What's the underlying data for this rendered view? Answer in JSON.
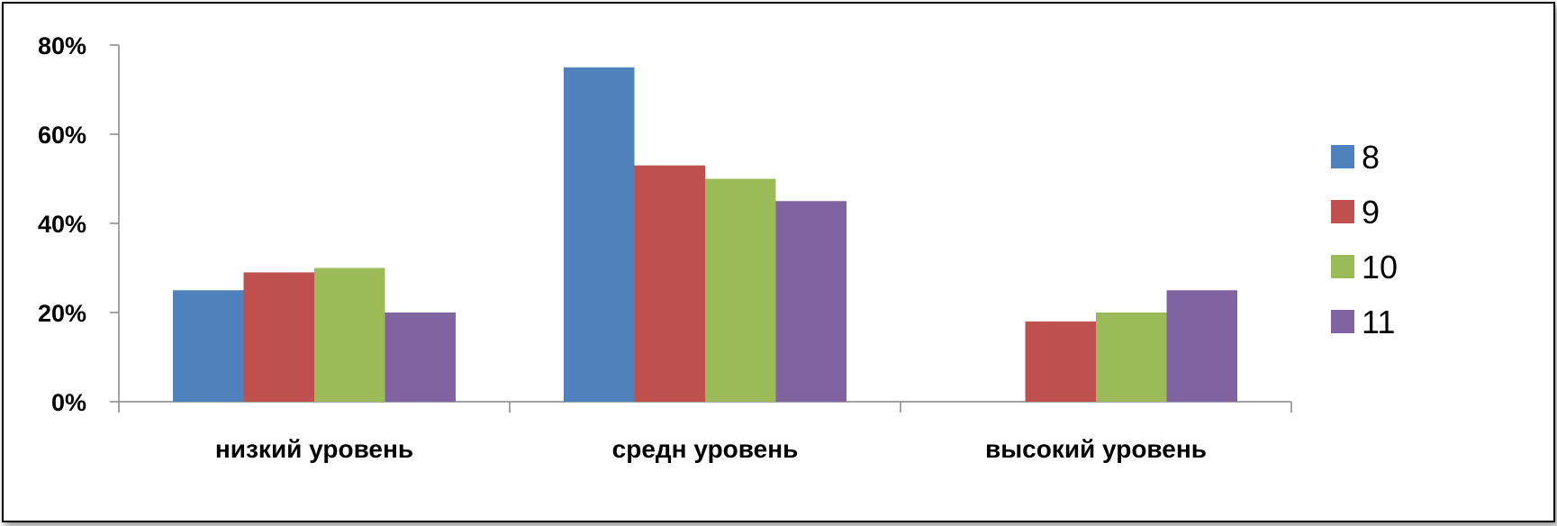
{
  "chart_data": {
    "type": "bar",
    "title": "",
    "xlabel": "",
    "ylabel": "",
    "ylim": [
      0,
      80
    ],
    "yticks": [
      "0%",
      "20%",
      "40%",
      "60%",
      "80%"
    ],
    "ytick_values": [
      0,
      20,
      40,
      60,
      80
    ],
    "categories": [
      "низкий уровень",
      "средн уровень",
      "высокий уровень"
    ],
    "series": [
      {
        "name": "8",
        "color": "#4F81BD",
        "values": [
          25,
          75,
          0
        ]
      },
      {
        "name": "9",
        "color": "#C0504D",
        "values": [
          29,
          53,
          18
        ]
      },
      {
        "name": "10",
        "color": "#9BBB59",
        "values": [
          30,
          50,
          20
        ]
      },
      {
        "name": "11",
        "color": "#8064A2",
        "values": [
          20,
          45,
          25
        ]
      }
    ],
    "legend_position": "right",
    "grid": false
  }
}
